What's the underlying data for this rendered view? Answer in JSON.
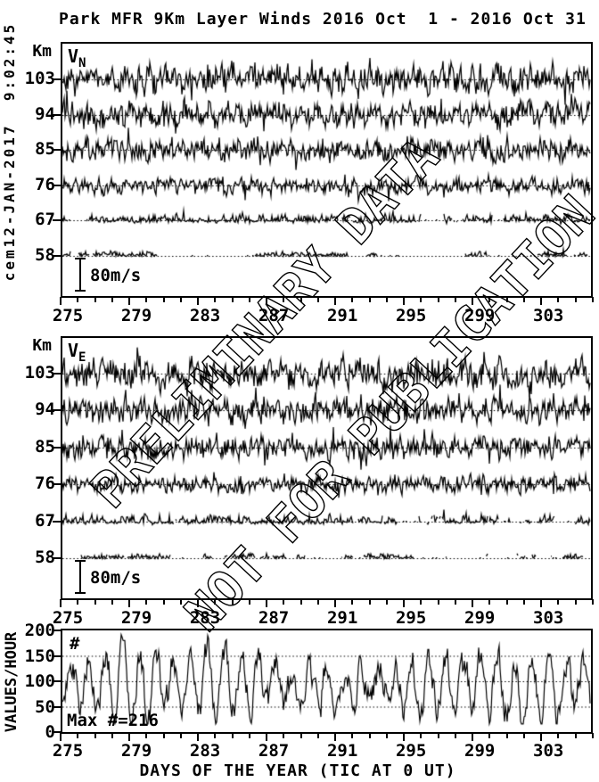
{
  "page": {
    "title": "Park MFR 9Km Layer Winds 2016 Oct  1 - 2016 Oct 31",
    "timestamp_label": "cem12-JAN-2017  9:02:45",
    "x_axis_title": "DAYS OF THE YEAR (TIC AT 0 UT)",
    "watermark_line1": "PRELIMINARY DATA",
    "watermark_line2": "NOT FOR PUBLICATION",
    "colors": {
      "ink": "#000000",
      "background": "#ffffff"
    }
  },
  "chart_data": [
    {
      "id": "v_north",
      "type": "line",
      "panel_label": "V",
      "panel_label_sub": "N",
      "y_axis_unit_label": "Km",
      "y_tick_labels": [
        "103",
        "94",
        "85",
        "76",
        "67",
        "58"
      ],
      "altitudes_km": [
        103,
        94,
        85,
        76,
        67,
        58
      ],
      "x_range_days": [
        275,
        306
      ],
      "x_day_tick_step": 1,
      "x_tick_labels": [
        "275",
        "279",
        "283",
        "287",
        "291",
        "295",
        "299",
        "303"
      ],
      "x_label_days": [
        275,
        279,
        283,
        287,
        291,
        295,
        299,
        303
      ],
      "scale_bar_label": "80m/s",
      "scale_bar_ms": 80,
      "grid": "dotted zero line per altitude",
      "series": [
        {
          "altitude_km": 103,
          "typical_amplitude_ms": 48,
          "coverage": 1.0
        },
        {
          "altitude_km": 94,
          "typical_amplitude_ms": 42,
          "coverage": 1.0
        },
        {
          "altitude_km": 85,
          "typical_amplitude_ms": 38,
          "coverage": 1.0
        },
        {
          "altitude_km": 76,
          "typical_amplitude_ms": 27,
          "coverage": 1.0
        },
        {
          "altitude_km": 67,
          "typical_amplitude_ms": 19,
          "coverage": 0.88
        },
        {
          "altitude_km": 58,
          "typical_amplitude_ms": 13,
          "coverage": 0.5
        }
      ],
      "seed": 11,
      "note": "noisy hourly northward wind traces; individual values unlabeled in source, synthesized to match amplitude and coverage"
    },
    {
      "id": "v_east",
      "type": "line",
      "panel_label": "V",
      "panel_label_sub": "E",
      "y_axis_unit_label": "Km",
      "y_tick_labels": [
        "103",
        "94",
        "85",
        "76",
        "67",
        "58"
      ],
      "altitudes_km": [
        103,
        94,
        85,
        76,
        67,
        58
      ],
      "x_range_days": [
        275,
        306
      ],
      "x_day_tick_step": 1,
      "x_tick_labels": [
        "275",
        "279",
        "283",
        "287",
        "291",
        "295",
        "299",
        "303"
      ],
      "x_label_days": [
        275,
        279,
        283,
        287,
        291,
        295,
        299,
        303
      ],
      "scale_bar_label": "80m/s",
      "scale_bar_ms": 80,
      "grid": "dotted zero line per altitude",
      "series": [
        {
          "altitude_km": 103,
          "typical_amplitude_ms": 50,
          "coverage": 1.0
        },
        {
          "altitude_km": 94,
          "typical_amplitude_ms": 44,
          "coverage": 1.0
        },
        {
          "altitude_km": 85,
          "typical_amplitude_ms": 38,
          "coverage": 1.0
        },
        {
          "altitude_km": 76,
          "typical_amplitude_ms": 28,
          "coverage": 1.0
        },
        {
          "altitude_km": 67,
          "typical_amplitude_ms": 19,
          "coverage": 0.85
        },
        {
          "altitude_km": 58,
          "typical_amplitude_ms": 13,
          "coverage": 0.5
        }
      ],
      "seed": 23,
      "note": "noisy hourly eastward wind traces; individual values unlabeled in source, synthesized to match amplitude and coverage"
    },
    {
      "id": "values_per_hour",
      "type": "line",
      "ylabel": "VALUES/HOUR",
      "ylim": [
        0,
        200
      ],
      "y_ticks": [
        200,
        150,
        100,
        50,
        0
      ],
      "y_tick_labels": [
        "200",
        "150",
        "100",
        "50",
        "0"
      ],
      "gridlines": [
        150,
        100,
        50
      ],
      "x_range_days": [
        275,
        306
      ],
      "x_day_tick_step": 1,
      "x_tick_labels": [
        "275",
        "279",
        "283",
        "287",
        "291",
        "295",
        "299",
        "303"
      ],
      "x_label_days": [
        275,
        279,
        283,
        287,
        291,
        295,
        299,
        303
      ],
      "corner_label": "#",
      "max_label": "Max #=216",
      "max_value": 216,
      "mean_per_hour": 100,
      "diurnal_amplitude": 58,
      "seed": 7,
      "note": "meteor echo counts per hour oscillating diurnally between ~30 and ~200"
    }
  ]
}
